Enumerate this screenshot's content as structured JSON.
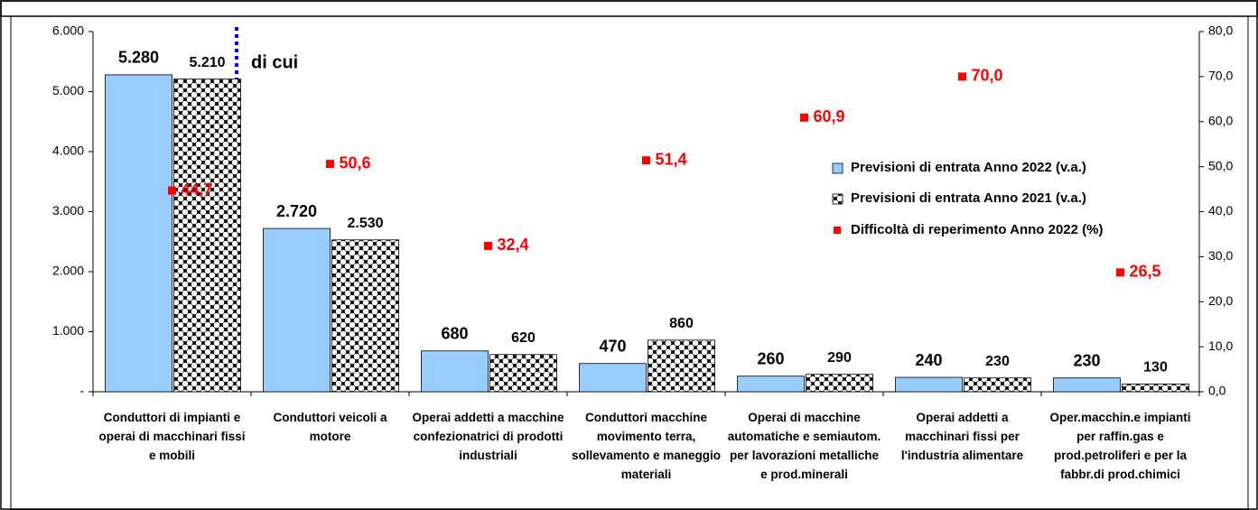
{
  "chart_data": {
    "type": "bar",
    "annotation": "di cui",
    "categories": [
      "Conduttori di impianti e operai di macchinari fissi e mobili",
      "Conduttori veicoli a motore",
      "Operai addetti a macchine confezionatrici di prodotti industriali",
      "Conduttori macchine movimento terra, sollevamento e maneggio materiali",
      "Operai di macchine automatiche e semiautom. per lavorazioni metalliche e prod.minerali",
      "Operai addetti a macchinari fissi per l'industria alimentare",
      "Oper.macchin.e impianti per raffin.gas e prod.petroliferi e per la fabbr.di prod.chimici"
    ],
    "series": [
      {
        "name": "Previsioni di entrata Anno 2022 (v.a.)",
        "color": "#99ccff",
        "values": [
          5280,
          2720,
          680,
          470,
          260,
          240,
          230
        ],
        "value_labels": [
          "5.280",
          "2.720",
          "680",
          "470",
          "260",
          "240",
          "230"
        ]
      },
      {
        "name": "Previsioni di entrata Anno 2021 (v.a.)",
        "color": "#000000",
        "values": [
          5210,
          2530,
          620,
          860,
          290,
          230,
          130
        ],
        "value_labels": [
          "5.210",
          "2.530",
          "620",
          "860",
          "290",
          "230",
          "130"
        ]
      },
      {
        "name": "Difficoltà di reperimento Anno 2022 (%)",
        "color": "#ff0000",
        "axis": "y2",
        "type": "scatter",
        "values": [
          44.7,
          50.6,
          32.4,
          51.4,
          60.9,
          70.0,
          26.5
        ],
        "value_labels": [
          "44,7",
          "50,6",
          "32,4",
          "51,4",
          "60,9",
          "70,0",
          "26,5"
        ]
      }
    ],
    "ylim": [
      0,
      6000
    ],
    "yticks": [
      {
        "value": 0,
        "label": "-"
      },
      {
        "value": 1000,
        "label": "1.000"
      },
      {
        "value": 2000,
        "label": "2.000"
      },
      {
        "value": 3000,
        "label": "3.000"
      },
      {
        "value": 4000,
        "label": "4.000"
      },
      {
        "value": 5000,
        "label": "5.000"
      },
      {
        "value": 6000,
        "label": "6.000"
      }
    ],
    "y2lim": [
      0,
      80
    ],
    "y2ticks": [
      {
        "value": 0,
        "label": "0,0"
      },
      {
        "value": 10,
        "label": "10,0"
      },
      {
        "value": 20,
        "label": "20,0"
      },
      {
        "value": 30,
        "label": "30,0"
      },
      {
        "value": 40,
        "label": "40,0"
      },
      {
        "value": 50,
        "label": "50,0"
      },
      {
        "value": 60,
        "label": "60,0"
      },
      {
        "value": 70,
        "label": "70,0"
      },
      {
        "value": 80,
        "label": "80,0"
      }
    ],
    "legend": "right",
    "grid": false
  }
}
